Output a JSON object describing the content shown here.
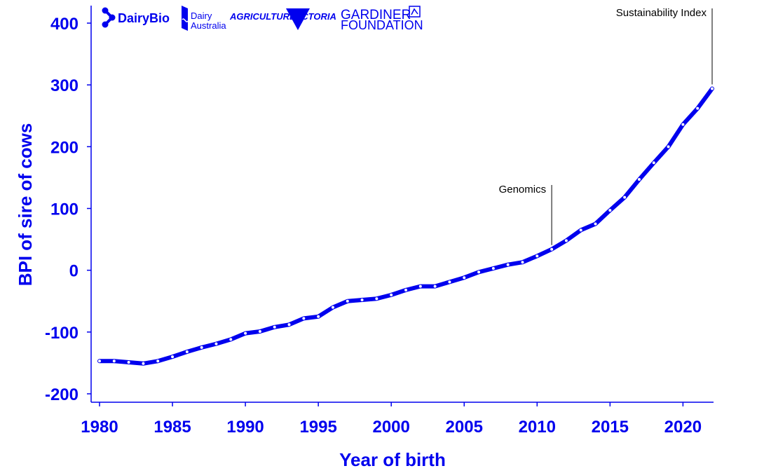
{
  "chart_data": {
    "type": "line",
    "xlabel": "Year of birth",
    "ylabel": "BPI of sire of cows",
    "xlim": [
      1980,
      2022
    ],
    "ylim": [
      -200,
      400
    ],
    "xticks": [
      "1980",
      "1985",
      "1990",
      "1995",
      "2000",
      "2005",
      "2010",
      "2015",
      "2020"
    ],
    "yticks": [
      "400",
      "300",
      "200",
      "100",
      "0",
      "-100",
      "-200"
    ],
    "grid": false,
    "series": [
      {
        "x": [
          1980,
          1981,
          1982,
          1983,
          1984,
          1985,
          1986,
          1987,
          1988,
          1989,
          1990,
          1991,
          1992,
          1993,
          1994,
          1995,
          1996,
          1997,
          1998,
          1999,
          2000,
          2001,
          2002,
          2003,
          2004,
          2005,
          2006,
          2007,
          2008,
          2009,
          2010,
          2011,
          2012,
          2013,
          2014,
          2015,
          2016,
          2017,
          2018,
          2019,
          2020,
          2021,
          2022
        ],
        "y": [
          -147,
          -147,
          -149,
          -151,
          -147,
          -140,
          -132,
          -125,
          -119,
          -112,
          -102,
          -99,
          -92,
          -88,
          -78,
          -75,
          -60,
          -50,
          -48,
          -46,
          -40,
          -32,
          -26,
          -26,
          -19,
          -12,
          -3,
          3,
          9,
          13,
          23,
          34,
          48,
          65,
          75,
          97,
          118,
          147,
          174,
          200,
          236,
          262,
          294
        ]
      }
    ],
    "annotations": [
      {
        "label": "Genomics",
        "x": 2011
      },
      {
        "label": "Sustainability Index",
        "x": 2022
      }
    ]
  },
  "logos": {
    "dairybio": "DairyBio",
    "dairy_australia_line1": "Dairy",
    "dairy_australia_line2": "Australia",
    "agriculture": "AGRICULTURE",
    "victoria": "VICTORIA",
    "gardiner_line1": "GARDINER",
    "gardiner_line2": "FOUNDATION"
  },
  "colors": {
    "line": "#0000ee",
    "axis": "#0000ee",
    "text": "#0000ee",
    "annotation": "#000000"
  }
}
